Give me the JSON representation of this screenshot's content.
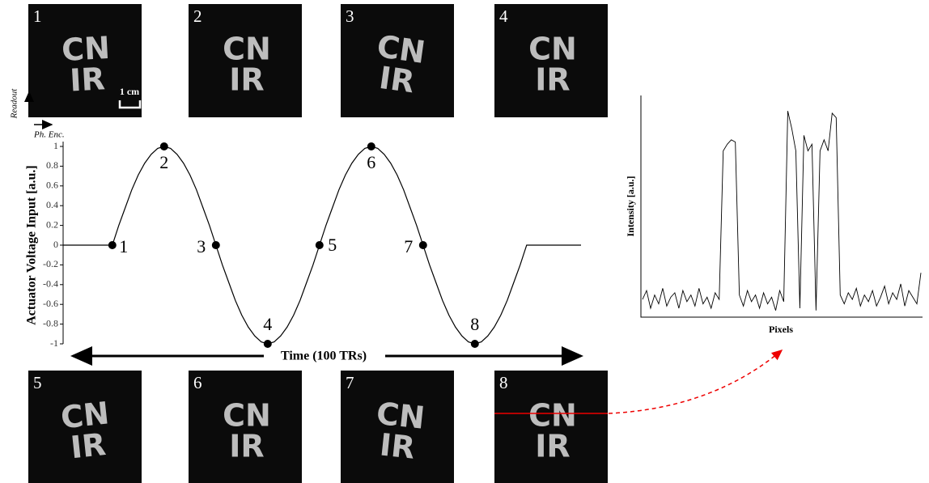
{
  "panels": [
    {
      "label": "1"
    },
    {
      "label": "2"
    },
    {
      "label": "3"
    },
    {
      "label": "4"
    },
    {
      "label": "5"
    },
    {
      "label": "6"
    },
    {
      "label": "7"
    },
    {
      "label": "8"
    }
  ],
  "letters": {
    "top": "CN",
    "bottom": "IR"
  },
  "scale_bar": "1 cm",
  "orientation": {
    "readout": "Readout",
    "phase": "Ph. Enc."
  },
  "chart_data": [
    {
      "type": "line",
      "ylabel": "Actuator Voltage Input [a.u.]",
      "xlabel": "Time (100 TRs)",
      "color": "#000000",
      "xlim": [
        0,
        100
      ],
      "ylim": [
        -1,
        1
      ],
      "yticks": [
        -1,
        -0.8,
        -0.6,
        -0.4,
        -0.2,
        0,
        0.2,
        0.4,
        0.6,
        0.8,
        1
      ],
      "x": [
        0,
        9.5,
        10.75,
        12,
        13.25,
        14.5,
        15.75,
        17,
        18.25,
        19.5,
        20.75,
        22,
        23.25,
        24.5,
        25.75,
        27,
        28.25,
        29.5,
        30.75,
        32,
        33.25,
        34.5,
        35.75,
        37,
        38.25,
        39.5,
        40.75,
        42,
        43.25,
        44.5,
        45.75,
        47,
        48.25,
        49.5,
        50.75,
        52,
        53.25,
        54.5,
        55.75,
        57,
        58.25,
        59.5,
        60.75,
        62,
        63.25,
        64.5,
        65.75,
        67,
        68.25,
        69.5,
        70.75,
        72,
        73.25,
        74.5,
        75.75,
        77,
        78.25,
        79.5,
        80.75,
        82,
        83.25,
        84.5,
        85.75,
        87,
        88.25,
        89.5,
        100
      ],
      "values": [
        0,
        0,
        0.2,
        0.38,
        0.56,
        0.71,
        0.83,
        0.92,
        0.98,
        1,
        0.98,
        0.92,
        0.83,
        0.71,
        0.56,
        0.38,
        0.2,
        0,
        -0.2,
        -0.38,
        -0.56,
        -0.71,
        -0.83,
        -0.92,
        -0.98,
        -1,
        -0.98,
        -0.92,
        -0.83,
        -0.71,
        -0.56,
        -0.38,
        -0.2,
        0,
        0.2,
        0.38,
        0.56,
        0.71,
        0.83,
        0.92,
        0.98,
        1,
        0.98,
        0.92,
        0.83,
        0.71,
        0.56,
        0.38,
        0.2,
        0,
        -0.2,
        -0.38,
        -0.56,
        -0.71,
        -0.83,
        -0.92,
        -0.98,
        -1,
        -0.98,
        -0.92,
        -0.83,
        -0.71,
        -0.56,
        -0.38,
        -0.2,
        0,
        0
      ],
      "points": {
        "x": [
          9.5,
          19.5,
          29.5,
          39.5,
          49.5,
          59.5,
          69.5,
          79.5
        ],
        "values": [
          0,
          1,
          0,
          -1,
          0,
          1,
          0,
          -1
        ],
        "labels": [
          "1",
          "2",
          "3",
          "4",
          "5",
          "6",
          "7",
          "8"
        ]
      }
    },
    {
      "type": "profile",
      "ylabel": "Intensity [a.u.]",
      "xlabel": "Pixels",
      "color": "#000000",
      "values": [
        0.08,
        0.12,
        0.04,
        0.1,
        0.06,
        0.13,
        0.05,
        0.09,
        0.11,
        0.04,
        0.12,
        0.07,
        0.1,
        0.05,
        0.13,
        0.06,
        0.09,
        0.04,
        0.11,
        0.08,
        0.75,
        0.78,
        0.8,
        0.79,
        0.1,
        0.05,
        0.12,
        0.07,
        0.1,
        0.04,
        0.11,
        0.06,
        0.09,
        0.03,
        0.12,
        0.07,
        0.93,
        0.85,
        0.75,
        0.04,
        0.82,
        0.75,
        0.78,
        0.03,
        0.75,
        0.8,
        0.75,
        0.92,
        0.9,
        0.1,
        0.06,
        0.11,
        0.08,
        0.13,
        0.05,
        0.1,
        0.07,
        0.12,
        0.05,
        0.09,
        0.14,
        0.06,
        0.11,
        0.08,
        0.15,
        0.05,
        0.12,
        0.09,
        0.06,
        0.2
      ]
    }
  ]
}
